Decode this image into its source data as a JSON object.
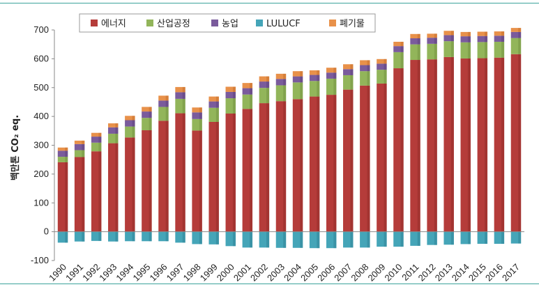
{
  "chart_data": {
    "type": "bar",
    "stacked": true,
    "title": "",
    "xlabel": "",
    "ylabel": "백만톤 CO₂ eq.",
    "ylim": [
      -100,
      700
    ],
    "yticks": [
      -100,
      0,
      100,
      200,
      300,
      400,
      500,
      600,
      700
    ],
    "ytick_labels": [
      "-100",
      "0",
      "100",
      "200",
      "300",
      "400",
      "500",
      "600",
      "700"
    ],
    "grid": false,
    "legend_position": "top-center",
    "categories": [
      "1990",
      "1991",
      "1992",
      "1993",
      "1994",
      "1995",
      "1996",
      "1997",
      "1998",
      "1999",
      "2000",
      "2001",
      "2002",
      "2003",
      "2004",
      "2005",
      "2006",
      "2007",
      "2008",
      "2009",
      "2010",
      "2011",
      "2012",
      "2013",
      "2014",
      "2015",
      "2016",
      "2017"
    ],
    "series": [
      {
        "name": "에너지",
        "color": "#b53c3a",
        "values": [
          241,
          259,
          279,
          307,
          327,
          352,
          385,
          411,
          351,
          381,
          410,
          426,
          446,
          453,
          460,
          469,
          475,
          493,
          507,
          514,
          567,
          596,
          598,
          606,
          601,
          602,
          604,
          616
        ]
      },
      {
        "name": "산업공정",
        "color": "#92b55a",
        "values": [
          19,
          24,
          30,
          33,
          38,
          43,
          48,
          50,
          40,
          49,
          53,
          50,
          53,
          55,
          58,
          54,
          56,
          50,
          50,
          48,
          56,
          54,
          54,
          55,
          56,
          56,
          55,
          56
        ]
      },
      {
        "name": "농업",
        "color": "#7a5b9c",
        "values": [
          21,
          21,
          21,
          22,
          22,
          22,
          22,
          23,
          23,
          22,
          22,
          22,
          22,
          22,
          21,
          21,
          21,
          21,
          21,
          21,
          21,
          21,
          21,
          21,
          21,
          21,
          21,
          21
        ]
      },
      {
        "name": "LULUCF",
        "color": "#45a5b8",
        "values": [
          -38,
          -34,
          -32,
          -34,
          -33,
          -33,
          -33,
          -38,
          -43,
          -44,
          -50,
          -55,
          -55,
          -56,
          -56,
          -57,
          -57,
          -55,
          -55,
          -52,
          -52,
          -49,
          -46,
          -45,
          -43,
          -42,
          -42,
          -41
        ]
      },
      {
        "name": "폐기물",
        "color": "#e8914a",
        "values": [
          11,
          12,
          13,
          14,
          15,
          16,
          17,
          18,
          17,
          17,
          18,
          18,
          18,
          18,
          18,
          16,
          17,
          17,
          17,
          16,
          15,
          15,
          14,
          15,
          15,
          15,
          15,
          14
        ]
      }
    ]
  }
}
